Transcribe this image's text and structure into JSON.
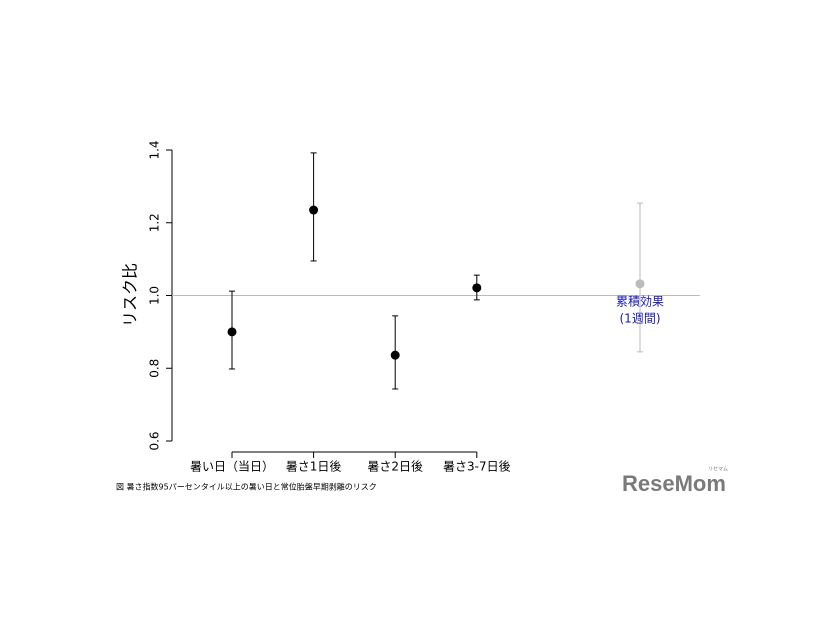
{
  "chart_data": {
    "type": "errorbar",
    "ylabel": "リスク比",
    "categories": [
      "暑い日（当日）",
      "暑さ1日後",
      "暑さ2日後",
      "暑さ3-7日後",
      null
    ],
    "values": [
      0.9,
      1.235,
      0.836,
      1.021,
      1.032
    ],
    "lower": [
      0.798,
      1.095,
      0.743,
      0.988,
      0.845
    ],
    "upper": [
      1.012,
      1.392,
      0.944,
      1.056,
      1.254
    ],
    "colors": [
      "#000000",
      "#000000",
      "#000000",
      "#000000",
      "#bbbbbb"
    ],
    "ylim": [
      0.6,
      1.4
    ],
    "yticks": [
      0.6,
      0.8,
      {
        "value": 1,
        "label": "1.0"
      },
      1.2,
      1.4
    ],
    "reference_line": 1,
    "annotations": [
      "累積効果",
      "(1週間)"
    ],
    "annotation_color": "#1a1ab8",
    "caption": "図 暑さ指数95パーセンタイル以上の暑い日と常位胎盤早期剥離のリスク",
    "logo": {
      "text": "ReseMom",
      "ruby": "リセマム"
    }
  }
}
